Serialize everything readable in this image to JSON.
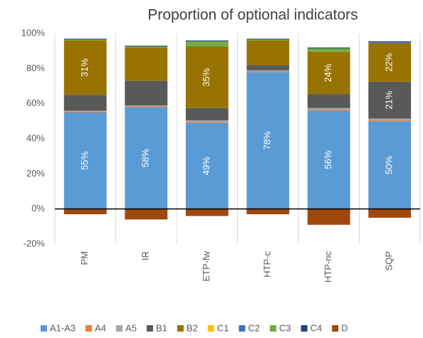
{
  "chart_data": {
    "type": "stacked_bar",
    "title": "Proportion of optional indicators",
    "categories": [
      "PM",
      "IR",
      "ETP-fw",
      "HTP-c",
      "HTP-nc",
      "SQP"
    ],
    "series": [
      {
        "name": "A1-A3",
        "color": "#5b9bd5",
        "values": [
          55,
          58,
          49,
          78,
          56,
          50
        ],
        "value_labels": [
          "55%",
          "58%",
          "49%",
          "78%",
          "56%",
          "50%"
        ]
      },
      {
        "name": "A4",
        "color": "#ed7d31",
        "values": [
          0.5,
          0.5,
          0.5,
          0.5,
          0.5,
          0.5
        ]
      },
      {
        "name": "A5",
        "color": "#a5a5a5",
        "values": [
          0.5,
          0.5,
          1,
          0.5,
          1,
          1
        ]
      },
      {
        "name": "B1",
        "color": "#595959",
        "values": [
          9,
          14,
          7,
          3,
          8,
          21
        ],
        "value_labels": [
          null,
          null,
          null,
          null,
          null,
          "21%"
        ]
      },
      {
        "name": "B2",
        "color": "#997300",
        "values": [
          31,
          19,
          35,
          14,
          24,
          22
        ],
        "value_labels": [
          "31%",
          null,
          "35%",
          null,
          "24%",
          "22%"
        ]
      },
      {
        "name": "C1",
        "color": "#ffc000",
        "values": [
          0,
          0,
          0,
          0,
          0,
          0
        ]
      },
      {
        "name": "C2",
        "color": "#4472c4",
        "values": [
          0,
          0,
          0,
          0,
          0,
          0.5
        ]
      },
      {
        "name": "C3",
        "color": "#70ad47",
        "values": [
          0.5,
          0.5,
          3,
          0.5,
          2,
          0
        ]
      },
      {
        "name": "C4",
        "color": "#264478",
        "values": [
          0.5,
          0.5,
          0.5,
          0.5,
          0.5,
          0.5
        ]
      },
      {
        "name": "D",
        "color": "#9e480e",
        "values": [
          -3,
          -6,
          -4,
          -3,
          -9,
          -5
        ]
      }
    ],
    "ylim": [
      -20,
      100
    ],
    "yticks": [
      {
        "value": -20,
        "label": "-20%"
      },
      {
        "value": 0,
        "label": "0%"
      },
      {
        "value": 20,
        "label": "20%"
      },
      {
        "value": 40,
        "label": "40%"
      },
      {
        "value": 60,
        "label": "60%"
      },
      {
        "value": 80,
        "label": "80%"
      },
      {
        "value": 100,
        "label": "100%"
      }
    ],
    "legend": "bottom"
  }
}
